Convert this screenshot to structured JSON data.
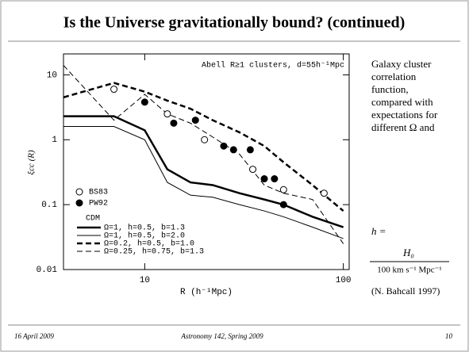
{
  "slide": {
    "title": "Is the Universe gravitationally bound? (continued)",
    "side_text": [
      "Galaxy cluster",
      "correlation",
      "function,",
      "compared with",
      "expectations for",
      "different Ω and"
    ],
    "side_h": "h =",
    "numerator": "H₀",
    "denominator": "100 km s⁻¹ Mpc⁻¹",
    "source": "(N. Bahcall 1997)",
    "footer_left": "16 April 2009",
    "footer_center": "Astronomy 142, Spring 2009",
    "footer_right": "10"
  },
  "chart_data": {
    "type": "line",
    "annotation": "Abell R≥1 clusters, d=55h⁻¹Mpc",
    "x_label": "R (h⁻¹Mpc)",
    "y_label": "ξcc (R)",
    "log_x": true,
    "log_y": true,
    "xlim": [
      3.9,
      107
    ],
    "ylim": [
      0.01,
      21
    ],
    "xticks": [
      10,
      100
    ],
    "yticks": [
      0.01,
      0.1,
      1,
      10
    ],
    "legend_title": "CDM",
    "x": [
      3.9,
      7,
      10,
      13,
      17,
      22,
      30,
      40,
      50,
      70,
      100
    ],
    "series": [
      {
        "name": "Ω=1, h=0.5, b=1.3",
        "color": "#000",
        "width": 2.5,
        "dashed": false,
        "values": [
          2.3,
          2.3,
          1.4,
          0.35,
          0.22,
          0.2,
          0.15,
          0.12,
          0.1,
          0.065,
          0.045
        ]
      },
      {
        "name": "Ω=1, h=0.5, b=2.0",
        "color": "#000",
        "width": 1,
        "dashed": false,
        "values": [
          1.6,
          1.6,
          1.0,
          0.22,
          0.14,
          0.13,
          0.1,
          0.08,
          0.065,
          0.045,
          0.03
        ]
      },
      {
        "name": "Ω=0.2, h=0.5, b=1.0",
        "color": "#000",
        "width": 2.5,
        "dashed": true,
        "values": [
          4.5,
          7.5,
          5.5,
          4,
          3,
          2,
          1.3,
          0.8,
          0.45,
          0.2,
          0.08
        ]
      },
      {
        "name": "Ω=0.25, h=0.75, b=1.3",
        "color": "#000",
        "width": 1,
        "dashed": true,
        "values": [
          14,
          2,
          5,
          2.5,
          1.8,
          1.1,
          0.6,
          0.2,
          0.15,
          0.12,
          0.025
        ]
      }
    ],
    "points": [
      {
        "name": "BS83",
        "marker": "open",
        "x": [
          7,
          13,
          20,
          35,
          50,
          80
        ],
        "values": [
          6,
          2.5,
          1,
          0.35,
          0.17,
          0.15
        ]
      },
      {
        "name": "PW92",
        "marker": "filled",
        "x": [
          10,
          14,
          18,
          25,
          28,
          34,
          40,
          45,
          50
        ],
        "values": [
          3.8,
          1.8,
          2,
          0.8,
          0.7,
          0.7,
          0.25,
          0.25,
          0.1
        ]
      }
    ]
  }
}
